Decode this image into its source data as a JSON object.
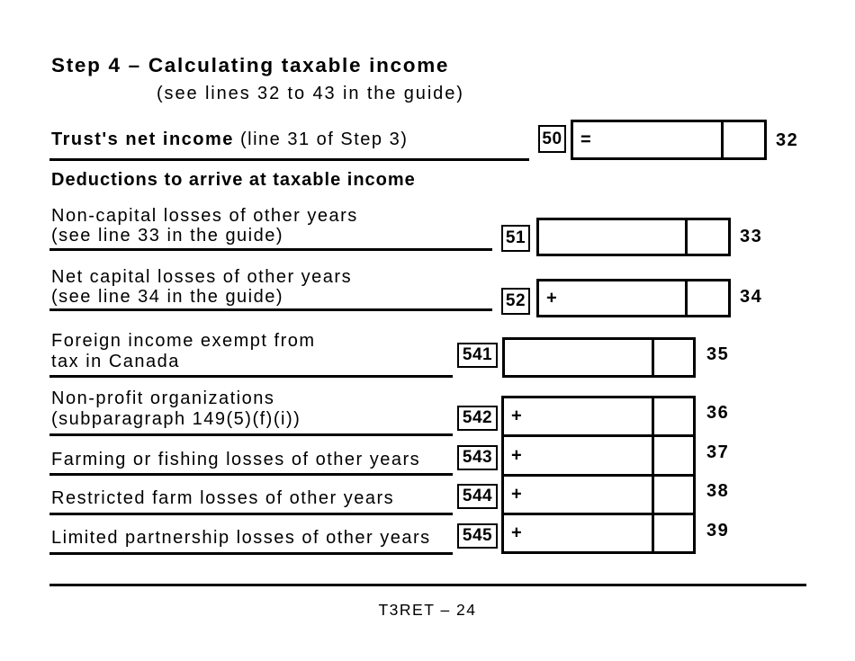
{
  "form": {
    "title": "Step 4 – Calculating taxable income",
    "subtitle": "(see lines 32 to 43 in the guide)",
    "section_heading": "Deductions to arrive at taxable income",
    "footer_text": "T3RET – 24",
    "ink_color": "#000000",
    "paper_color": "#ffffff"
  },
  "rows": [
    {
      "label_bold": "Trust's net income",
      "label_rest": " (line 31 of Step 3)",
      "code": "50",
      "symbol": "=",
      "amount": "",
      "cents": "",
      "line": "32"
    },
    {
      "label_line1": "Non-capital losses of other years",
      "label_line2": "(see line 33 in the guide)",
      "code": "51",
      "symbol": "",
      "amount": "",
      "cents": "",
      "line": "33"
    },
    {
      "label_line1": "Net capital losses of other years",
      "label_line2": "(see line 34 in the guide)",
      "code": "52",
      "symbol": "+",
      "amount": "",
      "cents": "",
      "line": "34"
    },
    {
      "label_line1": "Foreign income exempt from",
      "label_line2": "tax in Canada",
      "code": "541",
      "symbol": "",
      "amount": "",
      "cents": "",
      "line": "35"
    },
    {
      "label_line1": "Non-profit organizations",
      "label_line2": "(subparagraph 149(5)(f)(i))",
      "code": "542",
      "symbol": "+",
      "amount": "",
      "cents": "",
      "line": "36"
    },
    {
      "label_line1": "Farming or fishing losses of other years",
      "code": "543",
      "symbol": "+",
      "amount": "",
      "cents": "",
      "line": "37"
    },
    {
      "label_line1": "Restricted farm losses of other years",
      "code": "544",
      "symbol": "+",
      "amount": "",
      "cents": "",
      "line": "38"
    },
    {
      "label_line1": "Limited partnership losses of other years",
      "code": "545",
      "symbol": "+",
      "amount": "",
      "cents": "",
      "line": "39"
    }
  ]
}
